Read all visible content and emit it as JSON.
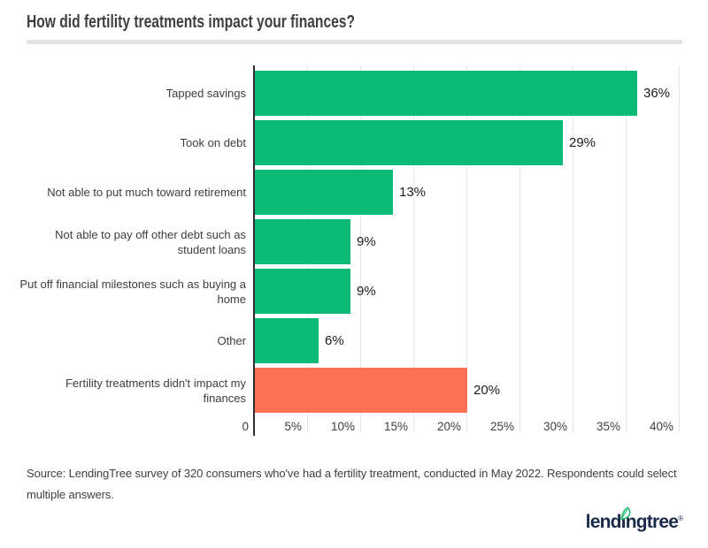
{
  "page": {
    "title": "How did fertility treatments impact your finances?",
    "source_lines": [
      "Source: LendingTree survey of 320 consumers who've had a fertility treatment, conducted in May 2022. Respondents could select",
      "multiple answers."
    ],
    "logo": {
      "brand": "lendingtree",
      "pre": "lend",
      "dotless_i": "ı",
      "post": "ngtree",
      "registered": "®",
      "navy": "#1a2b4a",
      "leaf_green": "#1fbe6e"
    }
  },
  "chart_data": {
    "type": "bar",
    "orientation": "horizontal",
    "title": "How did fertility treatments impact your finances?",
    "categories": [
      "Tapped savings",
      "Took on debt",
      "Not able to put much toward retirement",
      "Not able to pay off other debt such as student loans",
      "Put off financial milestones such as buying a home",
      "Other",
      "Fertility treatments didn't impact my finances"
    ],
    "label_lines": [
      [
        "Tapped savings"
      ],
      [
        "Took on debt"
      ],
      [
        "Not able to put much toward retirement"
      ],
      [
        "Not able to pay off other debt such as",
        "student loans"
      ],
      [
        "Put off financial milestones such as buying a",
        "home"
      ],
      [
        "Other"
      ],
      [
        "Fertility treatments didn't impact my",
        "finances"
      ]
    ],
    "values": [
      36,
      29,
      13,
      9,
      9,
      6,
      20
    ],
    "value_labels": [
      "36%",
      "29%",
      "13%",
      "9%",
      "9%",
      "6%",
      "20%"
    ],
    "highlight_index": 6,
    "xlim": [
      0,
      40
    ],
    "tick_values": [
      0,
      5,
      10,
      15,
      20,
      25,
      30,
      35,
      40
    ],
    "tick_labels": [
      "0",
      "5%",
      "10%",
      "15%",
      "20%",
      "25%",
      "30%",
      "35%",
      "40%"
    ],
    "grid": true,
    "legend": null,
    "colors": {
      "bar": "#0cbc76",
      "highlight": "#fc7152",
      "axis": "#2e2e2e",
      "grid": "#e8e8e8",
      "value_text": "#1c1c1c",
      "label_text": "#3d3d3d"
    }
  }
}
